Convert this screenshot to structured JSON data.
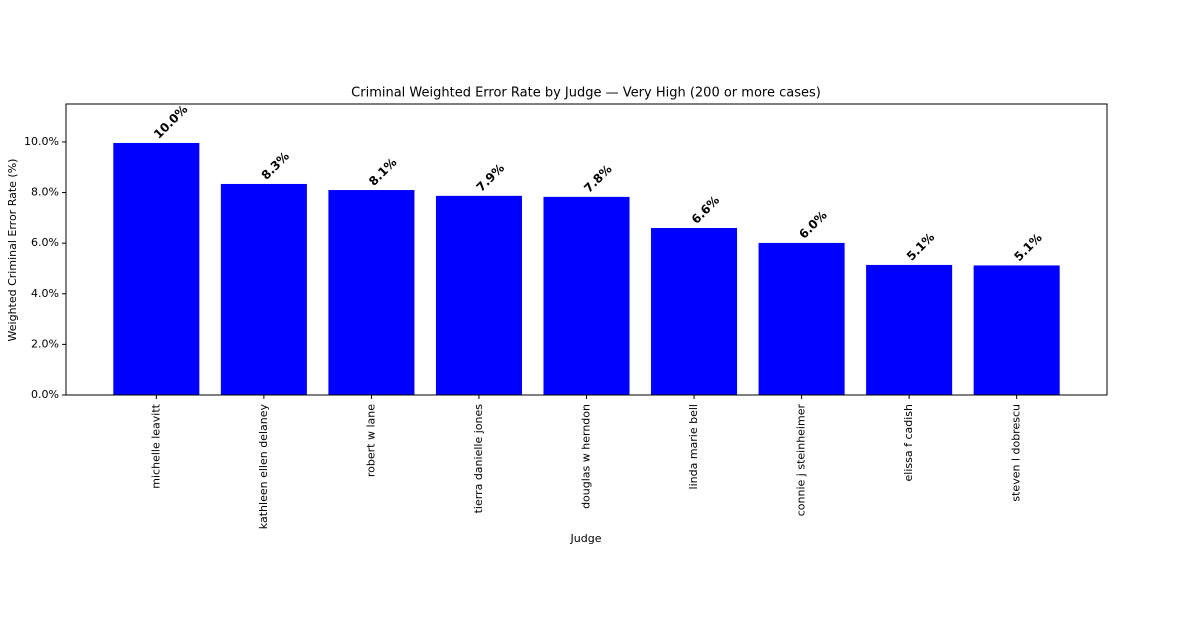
{
  "chart_data": {
    "type": "bar",
    "title": "Criminal Weighted Error Rate by Judge — Very High (200 or more cases)",
    "x_label": "Judge",
    "y_label": "Weighted Criminal Error Rate (%)",
    "categories": [
      "michelle leavitt",
      "kathleen ellen delaney",
      "robert w lane",
      "tierra danielle jones",
      "douglas w herndon",
      "linda marie bell",
      "connie j steinheimer",
      "elissa f cadish",
      "steven l dobrescu"
    ],
    "values": [
      9.96,
      8.34,
      8.1,
      7.87,
      7.83,
      6.6,
      6.01,
      5.14,
      5.12
    ],
    "value_labels": [
      "10.0%",
      "8.3%",
      "8.1%",
      "7.9%",
      "7.8%",
      "6.6%",
      "6.0%",
      "5.1%",
      "5.1%"
    ],
    "color": "#0000ff",
    "ylim": [
      0,
      11.5
    ],
    "yticks": [
      {
        "value": 0,
        "label": "0.0%"
      },
      {
        "value": 2,
        "label": "2.0%"
      },
      {
        "value": 4,
        "label": "4.0%"
      },
      {
        "value": 6,
        "label": "6.0%"
      },
      {
        "value": 8,
        "label": "8.0%"
      },
      {
        "value": 10,
        "label": "10.0%"
      }
    ],
    "grid": false
  }
}
